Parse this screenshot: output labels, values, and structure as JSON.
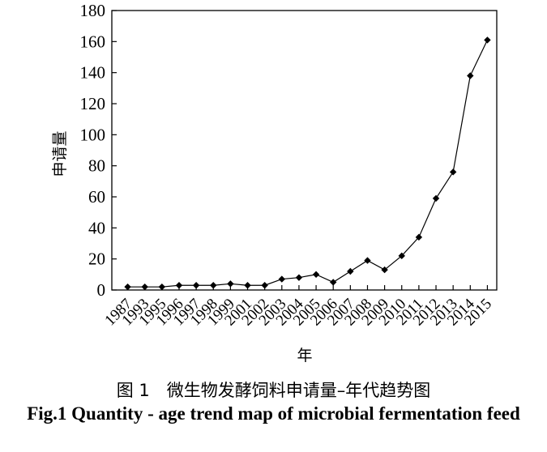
{
  "chart_data": {
    "type": "line",
    "categories": [
      "1987",
      "1993",
      "1995",
      "1996",
      "1997",
      "1998",
      "1999",
      "2001",
      "2002",
      "2003",
      "2004",
      "2005",
      "2006",
      "2007",
      "2008",
      "2009",
      "2010",
      "2011",
      "2012",
      "2013",
      "2014",
      "2015"
    ],
    "values": [
      2,
      2,
      2,
      3,
      3,
      3,
      4,
      3,
      3,
      7,
      8,
      10,
      5,
      12,
      19,
      13,
      22,
      34,
      59,
      76,
      138,
      161
    ],
    "ylabel": "申请量",
    "xlabel": "年",
    "ylim": [
      0,
      180
    ],
    "yticks": [
      0,
      20,
      40,
      60,
      80,
      100,
      120,
      140,
      160,
      180
    ],
    "grid": false,
    "marker": "diamond",
    "line_color": "#000000"
  },
  "caption": {
    "cn": "图 1　微生物发酵饲料申请量–年代趋势图",
    "en": "Fig.1 Quantity - age trend map of microbial fermentation feed"
  }
}
